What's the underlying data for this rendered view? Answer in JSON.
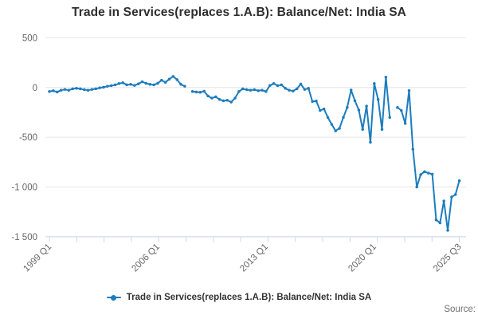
{
  "title": "Trade in Services(replaces 1.A.B): Balance/Net: India SA",
  "legend": {
    "label": "Trade in Services(replaces 1.A.B): Balance/Net: India SA"
  },
  "source": {
    "label": "Source:"
  },
  "colors": {
    "line": "#1d7dbd",
    "grid": "#e6e6e6",
    "axis": "#ccd6eb",
    "tick_text": "#666666",
    "title_text": "#2e2e2e"
  },
  "chart_data": {
    "type": "line",
    "title": "Trade in Services(replaces 1.A.B): Balance/Net: India SA",
    "xlabel": "",
    "ylabel": "",
    "ylim": [
      -1500,
      500
    ],
    "grid": true,
    "legend_position": "bottom",
    "marker": "circle",
    "y_ticks": [
      {
        "value": 500,
        "label": "500"
      },
      {
        "value": 0,
        "label": "0"
      },
      {
        "value": -500,
        "label": "-500"
      },
      {
        "value": -1000,
        "label": "-1 000"
      },
      {
        "value": -1500,
        "label": "-1 500"
      }
    ],
    "x_axis_labels": [
      "1999 Q1",
      "2006 Q1",
      "2013 Q1",
      "2020 Q1",
      "2025 Q3"
    ],
    "minor_tick_count": 16,
    "series": [
      {
        "name": "Trade in Services(replaces 1.A.B): Balance/Net: India SA",
        "color": "#1d7dbd",
        "periods": [
          "1999 Q1",
          "1999 Q2",
          "1999 Q3",
          "1999 Q4",
          "2000 Q1",
          "2000 Q2",
          "2000 Q3",
          "2000 Q4",
          "2001 Q1",
          "2001 Q2",
          "2001 Q3",
          "2001 Q4",
          "2002 Q1",
          "2002 Q2",
          "2002 Q3",
          "2002 Q4",
          "2003 Q1",
          "2003 Q2",
          "2003 Q3",
          "2003 Q4",
          "2004 Q1",
          "2004 Q2",
          "2004 Q3",
          "2004 Q4",
          "2005 Q1",
          "2005 Q2",
          "2005 Q3",
          "2005 Q4",
          "2006 Q1",
          "2006 Q2",
          "2006 Q3",
          "2006 Q4",
          "2007 Q1",
          "2007 Q2",
          "2007 Q3",
          "2007 Q4",
          "2008 Q1",
          "2008 Q2",
          "2008 Q3",
          "2008 Q4",
          "2009 Q1",
          "2009 Q2",
          "2009 Q3",
          "2009 Q4",
          "2010 Q1",
          "2010 Q2",
          "2010 Q3",
          "2010 Q4",
          "2011 Q1",
          "2011 Q2",
          "2011 Q3",
          "2011 Q4",
          "2012 Q1",
          "2012 Q2",
          "2012 Q3",
          "2012 Q4",
          "2013 Q1",
          "2013 Q2",
          "2013 Q3",
          "2013 Q4",
          "2014 Q1",
          "2014 Q2",
          "2014 Q3",
          "2014 Q4",
          "2015 Q1",
          "2015 Q2",
          "2015 Q3",
          "2015 Q4",
          "2016 Q1",
          "2016 Q2",
          "2016 Q3",
          "2016 Q4",
          "2017 Q1",
          "2017 Q2",
          "2017 Q3",
          "2017 Q4",
          "2018 Q1",
          "2018 Q2",
          "2018 Q3",
          "2018 Q4",
          "2019 Q1",
          "2019 Q2",
          "2019 Q3",
          "2019 Q4",
          "2020 Q1",
          "2020 Q2",
          "2020 Q3",
          "2020 Q4",
          "2021 Q1",
          "2021 Q2",
          "2021 Q3",
          "2021 Q4",
          "2022 Q1",
          "2022 Q2",
          "2022 Q3",
          "2022 Q4",
          "2023 Q1",
          "2023 Q2",
          "2023 Q3",
          "2023 Q4",
          "2024 Q1",
          "2024 Q2",
          "2024 Q3",
          "2024 Q4",
          "2025 Q1",
          "2025 Q2",
          "2025 Q3"
        ],
        "values": [
          -40,
          -32,
          -45,
          -27,
          -19,
          -27,
          -13,
          -8,
          -13,
          -21,
          -27,
          -19,
          -13,
          -3,
          3,
          13,
          19,
          27,
          40,
          48,
          27,
          32,
          21,
          37,
          58,
          43,
          32,
          27,
          43,
          74,
          53,
          85,
          112,
          80,
          32,
          13,
          null,
          -40,
          -45,
          -48,
          -37,
          -85,
          -106,
          -93,
          -120,
          -133,
          -128,
          -146,
          -106,
          -40,
          -13,
          -21,
          -27,
          -21,
          -32,
          -27,
          -40,
          20,
          40,
          19,
          27,
          -8,
          -27,
          -35,
          -13,
          35,
          -19,
          -8,
          -140,
          -135,
          -230,
          -215,
          -300,
          -370,
          -435,
          -410,
          -300,
          -200,
          -25,
          -133,
          -226,
          -420,
          -186,
          -550,
          40,
          -120,
          -420,
          105,
          -300,
          null,
          -200,
          -230,
          -360,
          -30,
          -620,
          -1000,
          -875,
          -845,
          -860,
          -870,
          -1330,
          -1360,
          -1140,
          -1435,
          -1100,
          -1075,
          -935
        ]
      }
    ]
  }
}
